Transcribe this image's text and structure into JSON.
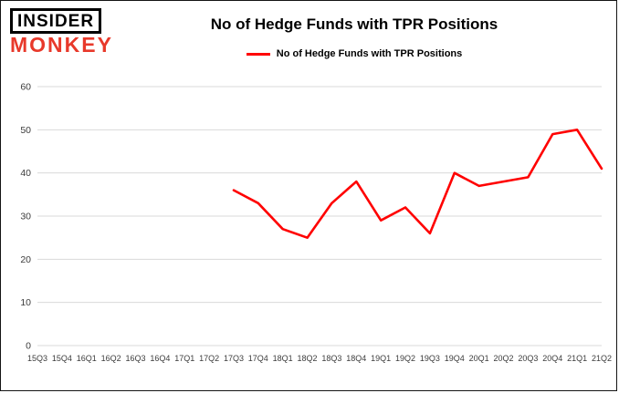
{
  "logo": {
    "line1": "INSIDER",
    "line2": "MONKEY",
    "accent_color": "#e8392b"
  },
  "header": {
    "title": "No of Hedge Funds with TPR Positions"
  },
  "legend": {
    "label": "No of Hedge Funds with TPR Positions",
    "color": "#ff0000"
  },
  "chart_data": {
    "type": "line",
    "title": "No of Hedge Funds with TPR Positions",
    "categories": [
      "15Q3",
      "15Q4",
      "16Q1",
      "16Q2",
      "16Q3",
      "16Q4",
      "17Q1",
      "17Q2",
      "17Q3",
      "17Q4",
      "18Q1",
      "18Q2",
      "18Q3",
      "18Q4",
      "19Q1",
      "19Q2",
      "19Q3",
      "19Q4",
      "20Q1",
      "20Q2",
      "20Q3",
      "20Q4",
      "21Q1",
      "21Q2"
    ],
    "series": [
      {
        "name": "No of Hedge Funds with TPR Positions",
        "color": "#ff0000",
        "values": [
          null,
          null,
          null,
          null,
          null,
          null,
          null,
          null,
          36,
          33,
          27,
          25,
          33,
          38,
          29,
          32,
          26,
          40,
          37,
          38,
          39,
          49,
          50,
          41
        ]
      }
    ],
    "xlabel": "",
    "ylabel": "",
    "ylim": [
      0,
      60
    ],
    "yticks": [
      0,
      10,
      20,
      30,
      40,
      50,
      60
    ],
    "grid": "horizontal",
    "grid_color": "#d9d9d9",
    "legend_position": "top"
  }
}
